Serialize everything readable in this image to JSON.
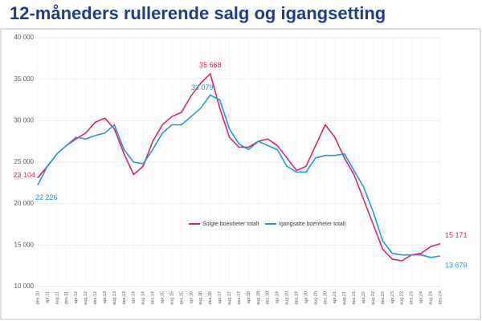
{
  "chart_data": {
    "type": "line",
    "title": "12-måneders rullerende salg og igangsetting",
    "categories": [
      "des.10",
      "apr.11",
      "aug.11",
      "des.11",
      "apr.12",
      "aug.12",
      "des.12",
      "apr.13",
      "aug.13",
      "des.13",
      "apr.14",
      "aug.14",
      "des.14",
      "apr.15",
      "aug.15",
      "des.15",
      "apr.16",
      "aug.16",
      "des.16",
      "apr.17",
      "aug.17",
      "des.17",
      "apr.18",
      "aug.18",
      "des.18",
      "apr.19",
      "aug.19",
      "des.19",
      "apr.20",
      "aug.20",
      "des.20",
      "apr.21",
      "aug.21",
      "des.21",
      "apr.22",
      "aug.22",
      "des.22",
      "apr.23",
      "aug.23",
      "des.23",
      "apr.24",
      "aug.24",
      "des.24"
    ],
    "series": [
      {
        "name": "Solgte boenheter totalt",
        "color": "#d6246e",
        "values": [
          23104,
          24500,
          26000,
          27000,
          27800,
          28500,
          29800,
          30300,
          29000,
          26000,
          23500,
          24500,
          27500,
          29500,
          30500,
          31000,
          33000,
          34500,
          35668,
          31500,
          28000,
          26800,
          26800,
          27500,
          27800,
          27000,
          25500,
          24000,
          24500,
          27000,
          29500,
          28000,
          25500,
          23500,
          20500,
          17500,
          14500,
          13300,
          13100,
          13800,
          14000,
          14800,
          15171
        ],
        "value_labels": [
          "23 104",
          null,
          null,
          null,
          null,
          null,
          null,
          null,
          null,
          null,
          null,
          null,
          null,
          null,
          null,
          null,
          null,
          null,
          "35 668",
          null,
          null,
          null,
          null,
          null,
          null,
          null,
          null,
          null,
          null,
          null,
          null,
          null,
          null,
          null,
          null,
          null,
          null,
          null,
          null,
          null,
          null,
          null,
          "15 171"
        ]
      },
      {
        "name": "Igangsatte boenheter totalt",
        "color": "#1f9ad6",
        "values": [
          22226,
          24500,
          26000,
          27000,
          28000,
          27800,
          28200,
          28500,
          29500,
          26500,
          25000,
          24800,
          26500,
          28500,
          29500,
          29500,
          30500,
          31500,
          33079,
          32500,
          29000,
          27200,
          26500,
          27500,
          27000,
          26500,
          24500,
          23800,
          23800,
          25500,
          25800,
          25800,
          26000,
          24000,
          22000,
          19000,
          15500,
          14000,
          13800,
          13800,
          13800,
          13500,
          13679
        ],
        "value_labels": [
          "22 226",
          null,
          null,
          null,
          null,
          null,
          null,
          null,
          null,
          null,
          null,
          null,
          null,
          null,
          null,
          null,
          null,
          null,
          "33 079",
          null,
          null,
          null,
          null,
          null,
          null,
          null,
          null,
          null,
          null,
          null,
          null,
          null,
          null,
          null,
          null,
          null,
          null,
          null,
          null,
          null,
          null,
          null,
          "13 679"
        ]
      }
    ],
    "ylim": [
      10000,
      40000
    ],
    "yticks": [
      {
        "value": 10000,
        "label": "10 000"
      },
      {
        "value": 15000,
        "label": "15 000"
      },
      {
        "value": 20000,
        "label": "20 000"
      },
      {
        "value": 25000,
        "label": "25 000"
      },
      {
        "value": 30000,
        "label": "30 000"
      },
      {
        "value": 35000,
        "label": "35 000"
      },
      {
        "value": 40000,
        "label": "40 000"
      }
    ],
    "grid": true,
    "legend": "center-right"
  }
}
